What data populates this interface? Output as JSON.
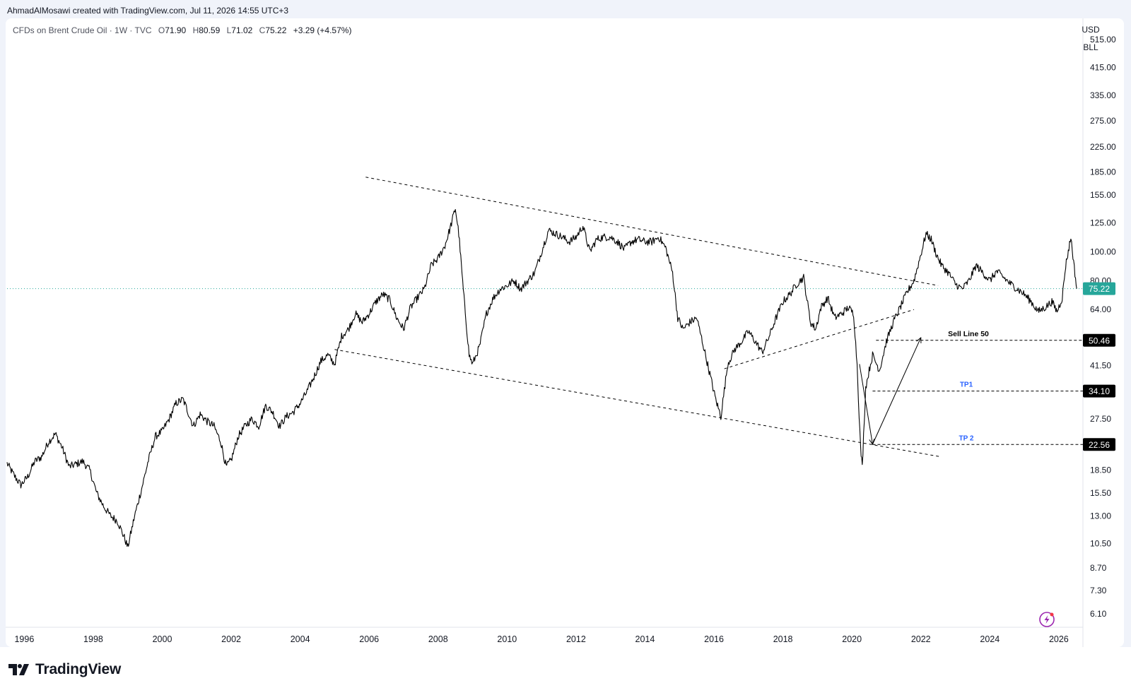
{
  "credit": "AhmadAlMosawi created with TradingView.com, Jul 11, 2026 14:55 UTC+3",
  "symbol": {
    "title": "CFDs on Brent Crude Oil · 1W · TVC",
    "o_key": "O",
    "o_val": "71.90",
    "h_key": "H",
    "h_val": "80.59",
    "l_key": "L",
    "l_val": "71.02",
    "c_key": "C",
    "c_val": "75.22",
    "change": "+3.29 (+4.57%)"
  },
  "axis": {
    "currency": "USD",
    "unit": "BLL"
  },
  "brand": {
    "logo_text": "TradingView"
  },
  "colors": {
    "price_line": "#000000",
    "current_badge": "#26a69a",
    "level_badge": "#000000",
    "tp_label": "#2962ff",
    "axis_text": "#131722"
  },
  "icons": {
    "alert": "lightning-bolt-icon",
    "logo": "tradingview-logo-icon"
  },
  "chart_data": {
    "type": "line",
    "scale": "log",
    "ylim": [
      5.5,
      600
    ],
    "xlim": [
      1995.5,
      2026.7
    ],
    "y_ticks": [
      515,
      415,
      335,
      275,
      225,
      185,
      155,
      125,
      100,
      80,
      64,
      52.5,
      41.5,
      34.1,
      27.5,
      22.5,
      18.5,
      15.5,
      13,
      10.5,
      8.7,
      7.3,
      6.1
    ],
    "y_tick_labels": [
      "515.00",
      "415.00",
      "335.00",
      "275.00",
      "225.00",
      "185.00",
      "155.00",
      "125.00",
      "100.00",
      "80.00",
      "64.00",
      "",
      "41.50",
      "",
      "27.50",
      "",
      "18.50",
      "15.50",
      "13.00",
      "10.50",
      "8.70",
      "7.30",
      "6.10"
    ],
    "x_ticks": [
      1996,
      1998,
      2000,
      2002,
      2004,
      2006,
      2008,
      2010,
      2012,
      2014,
      2016,
      2018,
      2020,
      2022,
      2024,
      2026
    ],
    "x_tick_labels": [
      "1996",
      "1998",
      "2000",
      "2002",
      "2004",
      "2006",
      "2008",
      "2010",
      "2012",
      "2014",
      "2016",
      "2018",
      "2020",
      "2022",
      "2024",
      "2026"
    ],
    "current_price": {
      "value": 75.22,
      "label": "75.22"
    },
    "series": [
      {
        "x": [
          1995.5,
          1995.7,
          1995.9,
          1996.1,
          1996.3,
          1996.5,
          1996.7,
          1996.9,
          1997.1,
          1997.3,
          1997.5,
          1997.7,
          1997.9,
          1998.1,
          1998.3,
          1998.5,
          1998.7,
          1998.9,
          1999.0,
          1999.2,
          1999.4,
          1999.6,
          1999.8,
          2000.0,
          2000.2,
          2000.4,
          2000.6,
          2000.7,
          2000.9,
          2001.1,
          2001.3,
          2001.5,
          2001.7,
          2001.85,
          2002.0,
          2002.2,
          2002.4,
          2002.6,
          2002.8,
          2003.0,
          2003.2,
          2003.4,
          2003.6,
          2003.8,
          2004.0,
          2004.2,
          2004.4,
          2004.6,
          2004.8,
          2005.0,
          2005.2,
          2005.4,
          2005.6,
          2005.8,
          2006.0,
          2006.2,
          2006.4,
          2006.6,
          2006.8,
          2007.0,
          2007.2,
          2007.4,
          2007.6,
          2007.8,
          2008.0,
          2008.2,
          2008.35,
          2008.5,
          2008.6,
          2008.75,
          2008.9,
          2009.0,
          2009.2,
          2009.4,
          2009.6,
          2009.8,
          2010.0,
          2010.2,
          2010.4,
          2010.6,
          2010.8,
          2011.0,
          2011.2,
          2011.4,
          2011.6,
          2011.8,
          2012.0,
          2012.2,
          2012.4,
          2012.6,
          2012.8,
          2013.0,
          2013.2,
          2013.4,
          2013.6,
          2013.8,
          2014.0,
          2014.2,
          2014.4,
          2014.6,
          2014.8,
          2014.95,
          2015.1,
          2015.3,
          2015.5,
          2015.7,
          2015.9,
          2016.05,
          2016.2,
          2016.4,
          2016.6,
          2016.8,
          2017.0,
          2017.2,
          2017.4,
          2017.6,
          2017.8,
          2018.0,
          2018.2,
          2018.4,
          2018.6,
          2018.8,
          2018.95,
          2019.1,
          2019.3,
          2019.5,
          2019.7,
          2019.9,
          2020.05,
          2020.15,
          2020.25,
          2020.3,
          2020.4,
          2020.5,
          2020.6,
          2020.8,
          2021.0,
          2021.2,
          2021.4,
          2021.6,
          2021.8,
          2022.0,
          2022.15,
          2022.3,
          2022.45,
          2022.6,
          2022.8,
          2023.0,
          2023.2,
          2023.4,
          2023.6,
          2023.8,
          2024.0,
          2024.2,
          2024.4,
          2024.6,
          2024.8,
          2025.0,
          2025.2,
          2025.4,
          2025.6,
          2025.8,
          2025.95,
          2026.1,
          2026.2,
          2026.35,
          2026.45,
          2026.52
        ],
        "y": [
          19.5,
          17.8,
          16.5,
          17.6,
          19.8,
          20.5,
          23.0,
          24.5,
          22.0,
          19.0,
          19.4,
          19.8,
          18.5,
          15.5,
          14.0,
          13.0,
          12.5,
          11.0,
          10.2,
          13.0,
          16.0,
          20.0,
          24.0,
          25.0,
          27.5,
          31.0,
          32.0,
          30.0,
          26.0,
          28.5,
          27.0,
          26.0,
          23.0,
          19.0,
          20.0,
          24.0,
          26.0,
          27.5,
          26.0,
          30.5,
          29.0,
          26.0,
          28.0,
          29.0,
          31.0,
          34.0,
          38.0,
          43.0,
          45.0,
          42.0,
          52.0,
          55.0,
          62.0,
          58.0,
          62.0,
          68.0,
          72.0,
          69.0,
          60.0,
          55.0,
          65.0,
          70.0,
          75.0,
          90.0,
          95.0,
          105.0,
          120.0,
          140.0,
          115.0,
          70.0,
          45.0,
          42.0,
          48.0,
          62.0,
          70.0,
          75.0,
          77.0,
          80.0,
          75.0,
          80.0,
          85.0,
          100.0,
          118.0,
          115.0,
          112.0,
          108.0,
          112.0,
          122.0,
          100.0,
          110.0,
          112.0,
          112.0,
          108.0,
          102.0,
          108.0,
          110.0,
          108.0,
          108.0,
          112.0,
          103.0,
          85.0,
          60.0,
          55.0,
          58.0,
          60.0,
          48.0,
          38.0,
          32.0,
          28.0,
          42.0,
          47.0,
          50.0,
          54.0,
          50.0,
          46.0,
          52.0,
          60.0,
          68.0,
          72.0,
          78.0,
          82.0,
          58.0,
          55.0,
          65.0,
          70.0,
          60.0,
          62.0,
          65.0,
          62.0,
          42.0,
          22.0,
          19.0,
          35.0,
          40.0,
          45.0,
          40.0,
          50.0,
          58.0,
          65.0,
          73.0,
          80.0,
          98.0,
          115.0,
          110.0,
          98.0,
          90.0,
          85.0,
          78.0,
          75.0,
          80.0,
          90.0,
          85.0,
          80.0,
          86.0,
          82.0,
          78.0,
          75.0,
          72.0,
          68.0,
          63.0,
          65.0,
          68.0,
          63.0,
          70.0,
          90.0,
          112.0,
          88.0,
          75.22
        ]
      }
    ],
    "annotations": {
      "channel_upper": {
        "from": [
          2005.9,
          178
        ],
        "to": [
          2022.5,
          77
        ]
      },
      "channel_lower": {
        "from": [
          2005.0,
          47
        ],
        "to": [
          2022.6,
          20.5
        ]
      },
      "support_line": {
        "from": [
          2016.3,
          40.5
        ],
        "to": [
          2021.8,
          64
        ]
      },
      "arrow_down": {
        "from": [
          2020.22,
          42
        ],
        "to": [
          2020.6,
          22.6
        ]
      },
      "arrow_up": {
        "from": [
          2020.6,
          22.6
        ],
        "to": [
          2022.0,
          51.5
        ]
      },
      "levels": [
        {
          "name": "sell-line",
          "value": 50.46,
          "label": "Sell Line 50",
          "badge": "50.46",
          "from_x": 2020.7
        },
        {
          "name": "tp1",
          "value": 34.1,
          "label": "TP1",
          "badge": "34.10",
          "from_x": 2020.6
        },
        {
          "name": "tp2",
          "value": 22.56,
          "label": "TP 2",
          "badge": "22.56",
          "from_x": 2020.6
        }
      ]
    }
  }
}
